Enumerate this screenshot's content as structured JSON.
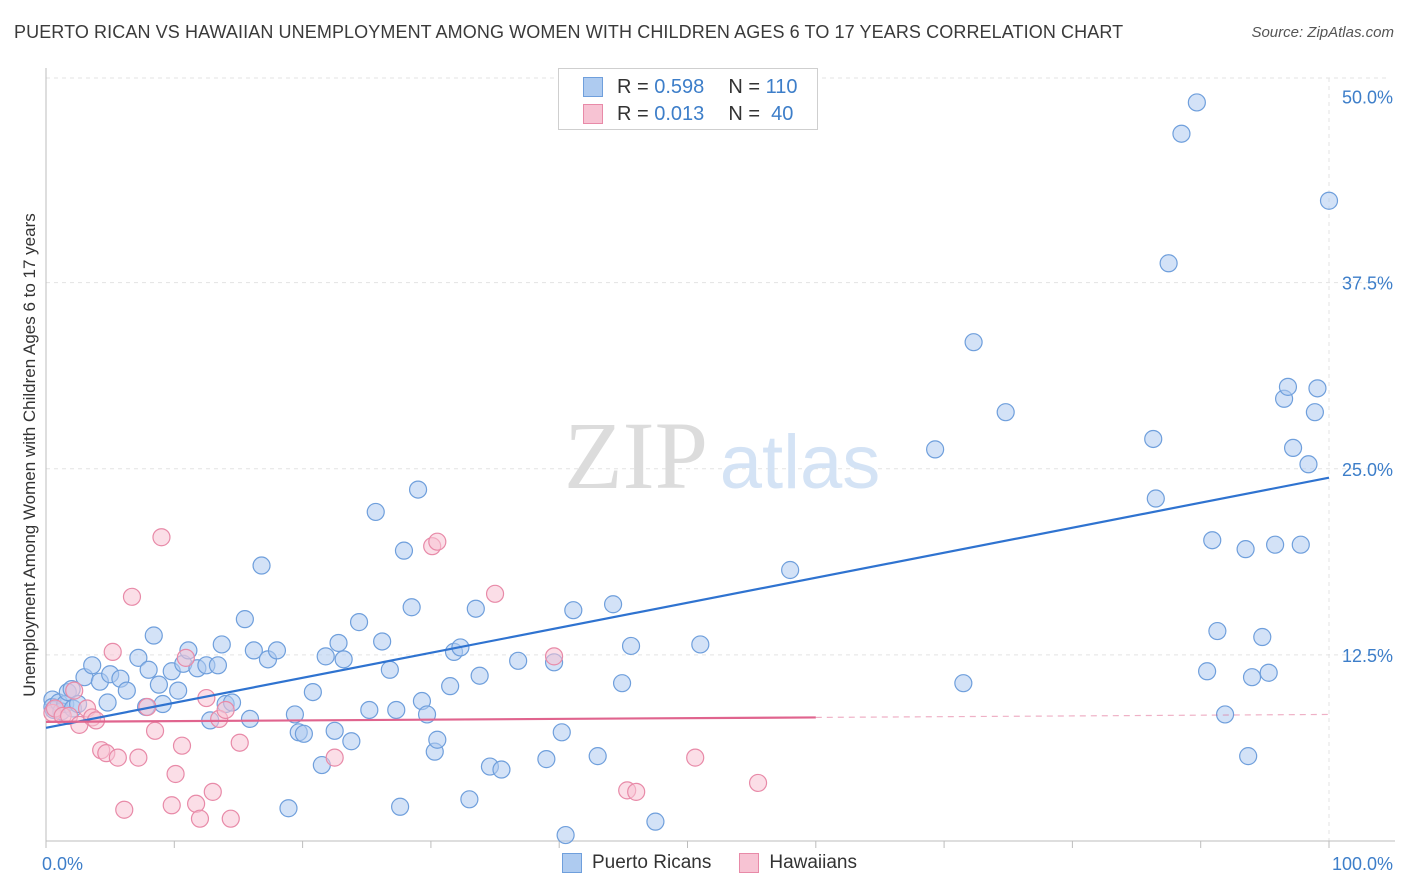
{
  "title": "PUERTO RICAN VS HAWAIIAN UNEMPLOYMENT AMONG WOMEN WITH CHILDREN AGES 6 TO 17 YEARS CORRELATION CHART",
  "source": "Source: ZipAtlas.com",
  "watermark": {
    "zip": "ZIP",
    "atlas": "atlas"
  },
  "legend_top": [
    {
      "r_label": "R =",
      "r_value": "0.598",
      "n_label": "N =",
      "n_value": "110",
      "color": "#aecbf0",
      "border": "#6f9fdc"
    },
    {
      "r_label": "R =",
      "r_value": "0.013",
      "n_label": "N =",
      "n_value": "40",
      "color": "#f7c3d3",
      "border": "#e88aa8"
    }
  ],
  "legend_bottom": [
    {
      "label": "Puerto Ricans",
      "color": "#aecbf0",
      "border": "#6f9fdc"
    },
    {
      "label": "Hawaiians",
      "color": "#f7c3d3",
      "border": "#e88aa8"
    }
  ],
  "chart_data": {
    "type": "scatter",
    "xlabel": "",
    "ylabel": "Unemployment Among Women with Children Ages 6 to 17 years",
    "xlim": [
      0,
      100
    ],
    "ylim": [
      0,
      50
    ],
    "x_tick_labels": [
      {
        "value": 0,
        "label": "0.0%"
      },
      {
        "value": 100,
        "label": "100.0%"
      }
    ],
    "y_tick_labels": [
      {
        "value": 12.5,
        "label": "12.5%"
      },
      {
        "value": 25,
        "label": "25.0%"
      },
      {
        "value": 37.5,
        "label": "37.5%"
      },
      {
        "value": 50,
        "label": "50.0%"
      }
    ],
    "series": [
      {
        "name": "Puerto Ricans",
        "color": "#aecbf0",
        "stroke": "#6f9fdc",
        "line_color": "#2f73d0",
        "trend": {
          "x0": 0,
          "y0": 7.6,
          "x1": 100,
          "y1": 24.4,
          "solid_until": 100
        },
        "points": [
          [
            0.5,
            9.5
          ],
          [
            0.5,
            9
          ],
          [
            0.6,
            8.8
          ],
          [
            1,
            9.3
          ],
          [
            1.2,
            8.7
          ],
          [
            1.5,
            9.2
          ],
          [
            1.7,
            10
          ],
          [
            2,
            10.2
          ],
          [
            2.1,
            8.9
          ],
          [
            2.5,
            9.2
          ],
          [
            3,
            11
          ],
          [
            3.6,
            11.8
          ],
          [
            4.2,
            10.7
          ],
          [
            4.8,
            9.3
          ],
          [
            5,
            11.2
          ],
          [
            5.8,
            10.9
          ],
          [
            6.3,
            10.1
          ],
          [
            7.2,
            12.3
          ],
          [
            7.8,
            9
          ],
          [
            8,
            11.5
          ],
          [
            8.4,
            13.8
          ],
          [
            8.8,
            10.5
          ],
          [
            9.1,
            9.2
          ],
          [
            9.8,
            11.4
          ],
          [
            10.3,
            10.1
          ],
          [
            10.7,
            11.9
          ],
          [
            11.1,
            12.8
          ],
          [
            11.8,
            11.6
          ],
          [
            12.5,
            11.8
          ],
          [
            12.8,
            8.1
          ],
          [
            13.4,
            11.8
          ],
          [
            13.7,
            13.2
          ],
          [
            14,
            9.2
          ],
          [
            14.5,
            9.3
          ],
          [
            15.5,
            14.9
          ],
          [
            15.9,
            8.2
          ],
          [
            16.2,
            12.8
          ],
          [
            16.8,
            18.5
          ],
          [
            17.3,
            12.2
          ],
          [
            18,
            12.8
          ],
          [
            18.9,
            2.2
          ],
          [
            19.4,
            8.5
          ],
          [
            19.7,
            7.3
          ],
          [
            20.1,
            7.2
          ],
          [
            20.8,
            10
          ],
          [
            21.5,
            5.1
          ],
          [
            21.8,
            12.4
          ],
          [
            22.5,
            7.4
          ],
          [
            22.8,
            13.3
          ],
          [
            23.2,
            12.2
          ],
          [
            23.8,
            6.7
          ],
          [
            24.4,
            14.7
          ],
          [
            25.2,
            8.8
          ],
          [
            25.7,
            22.1
          ],
          [
            26.2,
            13.4
          ],
          [
            26.8,
            11.5
          ],
          [
            27.3,
            8.8
          ],
          [
            27.6,
            2.3
          ],
          [
            27.9,
            19.5
          ],
          [
            28.5,
            15.7
          ],
          [
            29,
            23.6
          ],
          [
            29.3,
            9.4
          ],
          [
            29.7,
            8.5
          ],
          [
            30.3,
            6
          ],
          [
            30.5,
            6.8
          ],
          [
            31.5,
            10.4
          ],
          [
            31.8,
            12.7
          ],
          [
            32.3,
            13
          ],
          [
            33,
            2.8
          ],
          [
            33.5,
            15.6
          ],
          [
            33.8,
            11.1
          ],
          [
            34.6,
            5
          ],
          [
            35.5,
            4.8
          ],
          [
            36.8,
            12.1
          ],
          [
            39,
            5.5
          ],
          [
            39.6,
            12
          ],
          [
            40.2,
            7.3
          ],
          [
            40.5,
            0.4
          ],
          [
            41.1,
            15.5
          ],
          [
            43,
            5.7
          ],
          [
            44.2,
            15.9
          ],
          [
            44.9,
            10.6
          ],
          [
            45.6,
            13.1
          ],
          [
            47.5,
            1.3
          ],
          [
            51,
            13.2
          ],
          [
            58,
            18.2
          ],
          [
            69.3,
            26.3
          ],
          [
            71.5,
            10.6
          ],
          [
            72.3,
            33.5
          ],
          [
            74.8,
            28.8
          ],
          [
            86.3,
            27
          ],
          [
            86.5,
            23
          ],
          [
            87.5,
            38.8
          ],
          [
            88.5,
            47.5
          ],
          [
            89.7,
            49.6
          ],
          [
            90.5,
            11.4
          ],
          [
            90.9,
            20.2
          ],
          [
            91.3,
            14.1
          ],
          [
            91.9,
            8.5
          ],
          [
            93.5,
            19.6
          ],
          [
            93.7,
            5.7
          ],
          [
            94,
            11
          ],
          [
            94.8,
            13.7
          ],
          [
            95.3,
            11.3
          ],
          [
            95.8,
            19.9
          ],
          [
            96.5,
            29.7
          ],
          [
            96.8,
            30.5
          ],
          [
            97.2,
            26.4
          ],
          [
            97.8,
            19.9
          ],
          [
            98.4,
            25.3
          ],
          [
            98.9,
            28.8
          ],
          [
            99.1,
            30.4
          ],
          [
            100,
            43
          ]
        ]
      },
      {
        "name": "Hawaiians",
        "color": "#f7c3d3",
        "stroke": "#e88aa8",
        "line_color": "#e0648e",
        "trend": {
          "x0": 0,
          "y0": 8,
          "x1": 100,
          "y1": 8.5,
          "solid_until": 60
        },
        "points": [
          [
            0.5,
            8.6
          ],
          [
            0.7,
            8.9
          ],
          [
            1.3,
            8.4
          ],
          [
            1.8,
            8.4
          ],
          [
            2.2,
            10.1
          ],
          [
            2.6,
            7.8
          ],
          [
            3.2,
            8.9
          ],
          [
            3.6,
            8.3
          ],
          [
            3.9,
            8.1
          ],
          [
            4.3,
            6.1
          ],
          [
            4.7,
            5.9
          ],
          [
            5.2,
            12.7
          ],
          [
            5.6,
            5.6
          ],
          [
            6.1,
            2.1
          ],
          [
            6.7,
            16.4
          ],
          [
            7.2,
            5.6
          ],
          [
            7.9,
            9
          ],
          [
            8.5,
            7.4
          ],
          [
            9,
            20.4
          ],
          [
            9.8,
            2.4
          ],
          [
            10.1,
            4.5
          ],
          [
            10.6,
            6.4
          ],
          [
            10.9,
            12.3
          ],
          [
            11.7,
            2.5
          ],
          [
            12,
            1.5
          ],
          [
            12.5,
            9.6
          ],
          [
            13,
            3.3
          ],
          [
            13.5,
            8.2
          ],
          [
            14,
            8.8
          ],
          [
            14.4,
            1.5
          ],
          [
            15.1,
            6.6
          ],
          [
            22.5,
            5.6
          ],
          [
            30.1,
            19.8
          ],
          [
            30.5,
            20.1
          ],
          [
            35,
            16.6
          ],
          [
            39.6,
            12.4
          ],
          [
            45.3,
            3.4
          ],
          [
            46,
            3.3
          ],
          [
            50.6,
            5.6
          ],
          [
            55.5,
            3.9
          ]
        ]
      }
    ]
  }
}
